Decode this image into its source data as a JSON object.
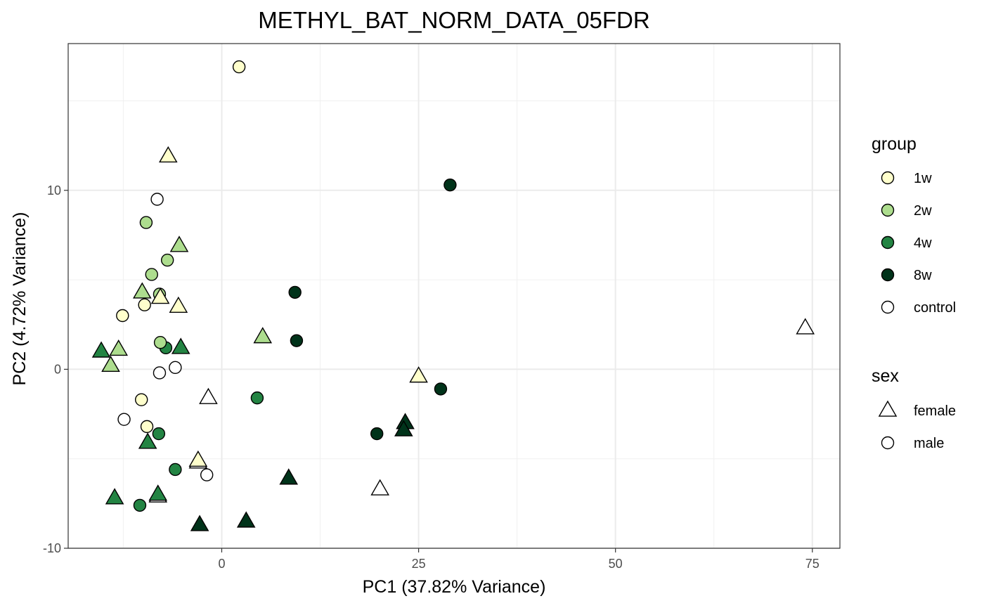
{
  "chart_data": {
    "type": "scatter",
    "title": "METHYL_BAT_NORM_DATA_05FDR",
    "xlabel": "PC1 (37.82% Variance)",
    "ylabel": "PC2 (4.72% Variance)",
    "xlim": [
      -19.5,
      78.5
    ],
    "ylim": [
      -10,
      18.2
    ],
    "xticks": [
      0,
      25,
      50,
      75
    ],
    "xtick_labels": [
      "0",
      "25",
      "50",
      "75"
    ],
    "yticks": [
      -10,
      0,
      10
    ],
    "ytick_labels": [
      "-10",
      "0",
      "10"
    ],
    "grid": true,
    "legend_position": "right",
    "group_legend": {
      "title": "group",
      "items": [
        {
          "label": "1w",
          "color": "#ffffcc"
        },
        {
          "label": "2w",
          "color": "#addd8e"
        },
        {
          "label": "4w",
          "color": "#238443"
        },
        {
          "label": "8w",
          "color": "#00331a"
        },
        {
          "label": "control",
          "color": "#ffffff"
        }
      ]
    },
    "sex_legend": {
      "title": "sex",
      "items": [
        {
          "label": "female",
          "shape": "triangle"
        },
        {
          "label": "male",
          "shape": "circle"
        }
      ]
    },
    "points": [
      {
        "x": 2.2,
        "y": 16.9,
        "group": "1w",
        "sex": "male"
      },
      {
        "x": -6.8,
        "y": 11.9,
        "group": "1w",
        "sex": "female"
      },
      {
        "x": -8.2,
        "y": 9.5,
        "group": "control",
        "sex": "male"
      },
      {
        "x": -9.6,
        "y": 8.2,
        "group": "2w",
        "sex": "male"
      },
      {
        "x": -5.4,
        "y": 6.9,
        "group": "2w",
        "sex": "female"
      },
      {
        "x": -6.9,
        "y": 6.1,
        "group": "2w",
        "sex": "male"
      },
      {
        "x": -8.9,
        "y": 5.3,
        "group": "2w",
        "sex": "male"
      },
      {
        "x": -10.1,
        "y": 4.3,
        "group": "2w",
        "sex": "female"
      },
      {
        "x": -7.9,
        "y": 4.2,
        "group": "2w",
        "sex": "male"
      },
      {
        "x": -9.8,
        "y": 3.6,
        "group": "1w",
        "sex": "male"
      },
      {
        "x": -7.8,
        "y": 4.0,
        "group": "1w",
        "sex": "female"
      },
      {
        "x": -5.5,
        "y": 3.5,
        "group": "1w",
        "sex": "female"
      },
      {
        "x": -12.6,
        "y": 3.0,
        "group": "1w",
        "sex": "male"
      },
      {
        "x": -7.1,
        "y": 1.2,
        "group": "4w",
        "sex": "male"
      },
      {
        "x": -7.8,
        "y": 1.5,
        "group": "2w",
        "sex": "male"
      },
      {
        "x": -5.2,
        "y": 1.2,
        "group": "4w",
        "sex": "female"
      },
      {
        "x": -15.3,
        "y": 1.0,
        "group": "4w",
        "sex": "female"
      },
      {
        "x": -13.1,
        "y": 1.1,
        "group": "2w",
        "sex": "female"
      },
      {
        "x": -14.1,
        "y": 0.2,
        "group": "2w",
        "sex": "female"
      },
      {
        "x": -5.9,
        "y": 0.1,
        "group": "control",
        "sex": "male"
      },
      {
        "x": -7.9,
        "y": -0.2,
        "group": "control",
        "sex": "male"
      },
      {
        "x": -1.7,
        "y": -1.6,
        "group": "control",
        "sex": "female"
      },
      {
        "x": -10.2,
        "y": -1.7,
        "group": "1w",
        "sex": "male"
      },
      {
        "x": -12.4,
        "y": -2.8,
        "group": "control",
        "sex": "male"
      },
      {
        "x": -9.5,
        "y": -3.2,
        "group": "1w",
        "sex": "male"
      },
      {
        "x": -8.0,
        "y": -3.6,
        "group": "4w",
        "sex": "male"
      },
      {
        "x": -9.4,
        "y": -4.1,
        "group": "4w",
        "sex": "female"
      },
      {
        "x": -5.9,
        "y": -5.6,
        "group": "4w",
        "sex": "male"
      },
      {
        "x": -3.0,
        "y": -5.2,
        "group": "control",
        "sex": "female"
      },
      {
        "x": -3.0,
        "y": -5.1,
        "group": "1w",
        "sex": "female"
      },
      {
        "x": -1.9,
        "y": -5.9,
        "group": "control",
        "sex": "male"
      },
      {
        "x": -8.1,
        "y": -7.1,
        "group": "control",
        "sex": "female"
      },
      {
        "x": -8.1,
        "y": -7.0,
        "group": "4w",
        "sex": "female"
      },
      {
        "x": -13.6,
        "y": -7.2,
        "group": "4w",
        "sex": "female"
      },
      {
        "x": -10.4,
        "y": -7.6,
        "group": "4w",
        "sex": "male"
      },
      {
        "x": -2.8,
        "y": -8.7,
        "group": "8w",
        "sex": "female"
      },
      {
        "x": 3.1,
        "y": -8.5,
        "group": "8w",
        "sex": "female"
      },
      {
        "x": 8.5,
        "y": -6.1,
        "group": "8w",
        "sex": "female"
      },
      {
        "x": 4.5,
        "y": -1.6,
        "group": "4w",
        "sex": "male"
      },
      {
        "x": 5.2,
        "y": 1.8,
        "group": "2w",
        "sex": "female"
      },
      {
        "x": 9.3,
        "y": 4.3,
        "group": "8w",
        "sex": "male"
      },
      {
        "x": 9.5,
        "y": 1.6,
        "group": "8w",
        "sex": "male"
      },
      {
        "x": 29.0,
        "y": 10.3,
        "group": "8w",
        "sex": "male"
      },
      {
        "x": 25.0,
        "y": -0.4,
        "group": "1w",
        "sex": "female"
      },
      {
        "x": 27.8,
        "y": -1.1,
        "group": "8w",
        "sex": "male"
      },
      {
        "x": 23.3,
        "y": -3.0,
        "group": "8w",
        "sex": "female"
      },
      {
        "x": 23.1,
        "y": -3.4,
        "group": "8w",
        "sex": "female"
      },
      {
        "x": 19.7,
        "y": -3.6,
        "group": "8w",
        "sex": "male"
      },
      {
        "x": 20.1,
        "y": -6.7,
        "group": "control",
        "sex": "female"
      },
      {
        "x": 74.1,
        "y": 2.3,
        "group": "control",
        "sex": "female"
      }
    ]
  }
}
